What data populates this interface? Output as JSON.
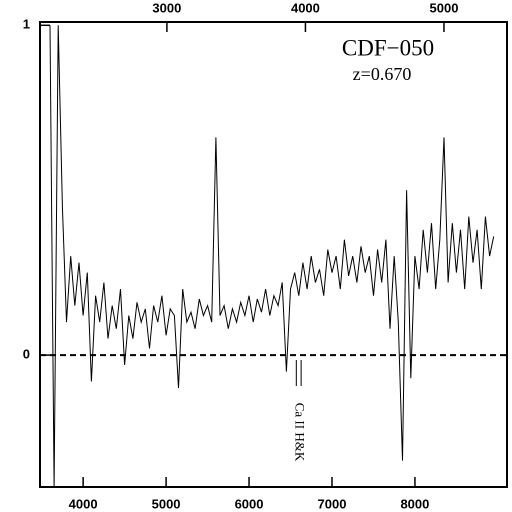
{
  "chart_data": {
    "type": "line",
    "annotations": [
      "CDF−050",
      "z=0.670"
    ],
    "marker": {
      "label": "Ca II H&K",
      "x": [
        6570,
        6628
      ]
    },
    "x": [
      3600,
      3650,
      3700,
      3750,
      3800,
      3850,
      3900,
      3950,
      4000,
      4050,
      4100,
      4150,
      4200,
      4250,
      4300,
      4350,
      4400,
      4450,
      4500,
      4550,
      4600,
      4650,
      4700,
      4750,
      4800,
      4850,
      4900,
      4950,
      5000,
      5050,
      5100,
      5150,
      5200,
      5250,
      5300,
      5350,
      5400,
      5450,
      5500,
      5550,
      5600,
      5650,
      5700,
      5750,
      5800,
      5850,
      5900,
      5950,
      6000,
      6050,
      6100,
      6150,
      6200,
      6250,
      6300,
      6350,
      6400,
      6450,
      6500,
      6550,
      6600,
      6650,
      6700,
      6750,
      6800,
      6850,
      6900,
      6950,
      7000,
      7050,
      7100,
      7150,
      7200,
      7250,
      7300,
      7350,
      7400,
      7450,
      7500,
      7550,
      7600,
      7650,
      7700,
      7750,
      7800,
      7850,
      7900,
      7950,
      8000,
      8050,
      8100,
      8150,
      8200,
      8250,
      8300,
      8350,
      8400,
      8450,
      8500,
      8550,
      8600,
      8650,
      8700,
      8750,
      8800,
      8850,
      8900,
      8950
    ],
    "values": [
      1.0,
      -0.4,
      1.0,
      0.45,
      0.1,
      0.3,
      0.15,
      0.28,
      0.12,
      0.25,
      -0.08,
      0.18,
      0.1,
      0.22,
      0.05,
      0.15,
      0.08,
      0.2,
      -0.03,
      0.12,
      0.05,
      0.16,
      0.1,
      0.14,
      0.02,
      0.15,
      0.1,
      0.18,
      0.06,
      0.14,
      0.12,
      -0.1,
      0.2,
      0.1,
      0.13,
      0.08,
      0.17,
      0.12,
      0.15,
      0.1,
      0.66,
      0.12,
      0.15,
      0.08,
      0.14,
      0.1,
      0.16,
      0.12,
      0.18,
      0.1,
      0.17,
      0.13,
      0.2,
      0.12,
      0.18,
      0.15,
      0.22,
      -0.05,
      0.2,
      0.25,
      0.18,
      0.28,
      0.2,
      0.3,
      0.22,
      0.26,
      0.18,
      0.32,
      0.25,
      0.3,
      0.2,
      0.35,
      0.24,
      0.3,
      0.22,
      0.33,
      0.25,
      0.3,
      0.18,
      0.32,
      0.22,
      0.35,
      0.08,
      0.3,
      0.1,
      -0.32,
      0.5,
      -0.07,
      0.3,
      0.2,
      0.38,
      0.25,
      0.4,
      0.2,
      0.35,
      0.66,
      0.22,
      0.4,
      0.25,
      0.38,
      0.2,
      0.42,
      0.28,
      0.38,
      0.2,
      0.42,
      0.3,
      0.36
    ],
    "color": "#000000",
    "xlim": [
      3480,
      9110
    ],
    "xticks": [
      4000,
      5000,
      6000,
      7000,
      8000
    ],
    "x2lim": [
      2084,
      5455
    ],
    "x2ticks": [
      3000,
      4000,
      5000
    ],
    "ylim": [
      -0.4,
      1.01
    ],
    "yticks": [
      0,
      1
    ],
    "hline": 0
  }
}
